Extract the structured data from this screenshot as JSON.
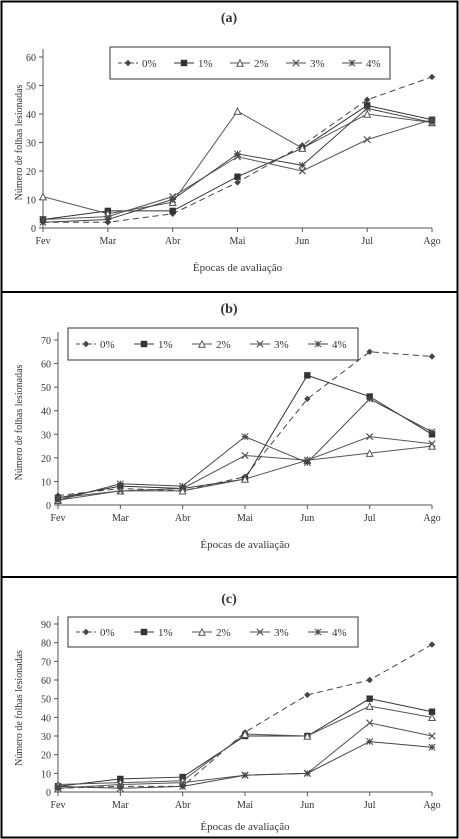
{
  "chart_data": [
    {
      "type": "line",
      "title": "(a)",
      "xlabel": "Épocas de avaliação",
      "ylabel": "Número de folhas lesionadas",
      "categories": [
        "Fev",
        "Mar",
        "Abr",
        "Mai",
        "Jun",
        "Jul",
        "Ago"
      ],
      "ylim": [
        0,
        60
      ],
      "yticks": [
        "0",
        "10",
        "20",
        "30",
        "40",
        "50",
        "60"
      ],
      "legend_position": "top",
      "grid": false,
      "series": [
        {
          "name": "0%",
          "values": [
            2,
            2,
            5,
            16,
            29,
            45,
            53
          ]
        },
        {
          "name": "1%",
          "values": [
            3,
            6,
            6,
            18,
            28,
            43,
            38
          ]
        },
        {
          "name": "2%",
          "values": [
            11,
            5,
            9,
            41,
            28,
            40,
            37
          ]
        },
        {
          "name": "3%",
          "values": [
            3,
            4,
            11,
            25,
            20,
            31,
            38
          ]
        },
        {
          "name": "4%",
          "values": [
            2,
            3,
            10,
            26,
            22,
            42,
            37
          ]
        }
      ]
    },
    {
      "type": "line",
      "title": "(b)",
      "xlabel": "Épocas de avaliação",
      "ylabel": "Número de folhas lesionadas",
      "categories": [
        "Fev",
        "Mar",
        "Abr",
        "Mai",
        "Jun",
        "Jul",
        "Ago"
      ],
      "ylim": [
        0,
        70
      ],
      "yticks": [
        "0",
        "10",
        "20",
        "30",
        "40",
        "50",
        "60",
        "70"
      ],
      "legend_position": "top",
      "grid": false,
      "series": [
        {
          "name": "0%",
          "values": [
            4,
            7,
            6,
            12,
            45,
            65,
            63
          ]
        },
        {
          "name": "1%",
          "values": [
            3,
            8,
            7,
            11,
            55,
            46,
            30
          ]
        },
        {
          "name": "2%",
          "values": [
            2,
            6,
            6,
            11,
            19,
            22,
            25
          ]
        },
        {
          "name": "3%",
          "values": [
            3,
            6,
            7,
            21,
            19,
            29,
            26
          ]
        },
        {
          "name": "4%",
          "values": [
            2,
            9,
            8,
            29,
            18,
            45,
            31
          ]
        }
      ]
    },
    {
      "type": "line",
      "title": "(c)",
      "xlabel": "Épocas de avaliação",
      "ylabel": "Número de folhas lesionadas",
      "categories": [
        "Fev",
        "Mar",
        "Abr",
        "Mai",
        "Jun",
        "Jul",
        "Ago"
      ],
      "ylim": [
        0,
        90
      ],
      "yticks": [
        "0",
        "10",
        "20",
        "30",
        "40",
        "50",
        "60",
        "70",
        "80",
        "90"
      ],
      "legend_position": "top",
      "grid": false,
      "series": [
        {
          "name": "0%",
          "values": [
            2,
            3,
            3,
            32,
            52,
            60,
            79
          ]
        },
        {
          "name": "1%",
          "values": [
            3,
            7,
            8,
            30,
            30,
            50,
            43
          ]
        },
        {
          "name": "2%",
          "values": [
            4,
            5,
            6,
            31,
            30,
            46,
            40
          ]
        },
        {
          "name": "3%",
          "values": [
            2,
            4,
            5,
            9,
            10,
            37,
            30
          ]
        },
        {
          "name": "4%",
          "values": [
            3,
            2,
            3,
            9,
            10,
            27,
            24
          ]
        }
      ]
    }
  ]
}
